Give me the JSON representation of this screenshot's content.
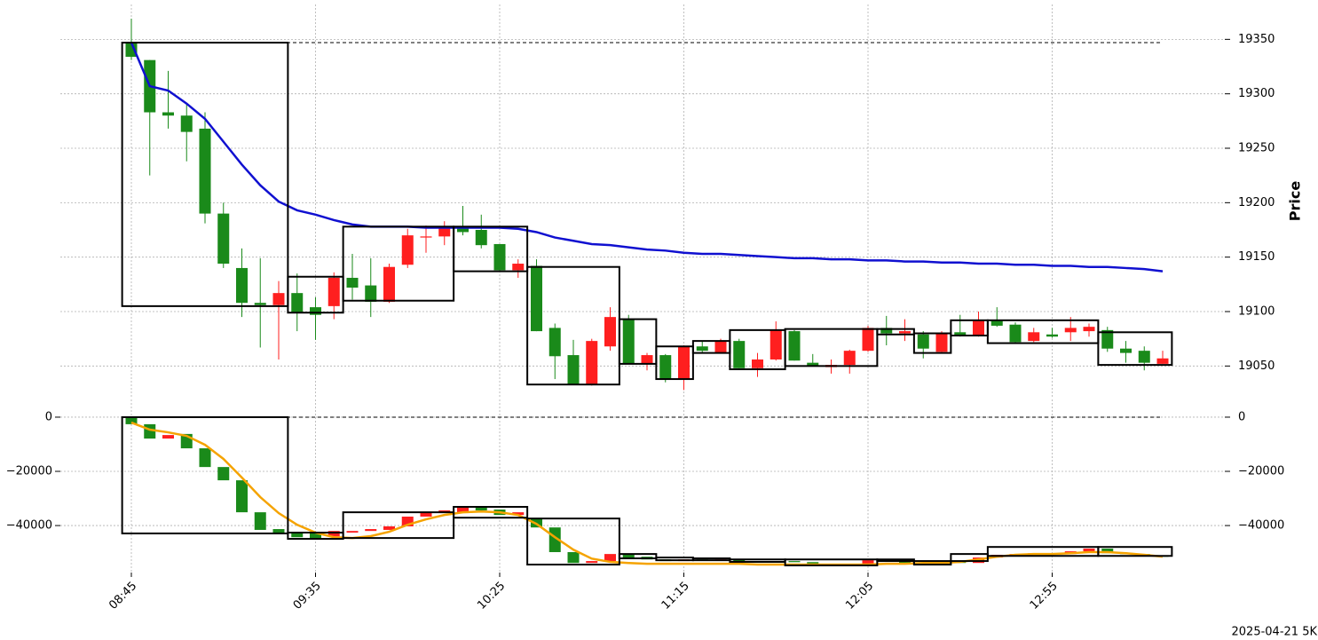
{
  "chart_data": {
    "type": "candlestick",
    "categories": [
      "08:45",
      null,
      null,
      null,
      null,
      null,
      null,
      null,
      null,
      null,
      "09:35",
      null,
      null,
      null,
      null,
      null,
      null,
      null,
      null,
      null,
      "10:25",
      null,
      null,
      null,
      null,
      null,
      null,
      null,
      null,
      null,
      "11:15",
      null,
      null,
      null,
      null,
      null,
      null,
      null,
      null,
      null,
      "12:05",
      null,
      null,
      null,
      null,
      null,
      null,
      null,
      null,
      null,
      "12:55",
      null,
      null,
      null,
      null,
      null,
      null
    ],
    "footer": "2025-04-21 5K",
    "grid": true,
    "up_color": "#ff1f1f",
    "down_color": "#1a8a1a",
    "panels": [
      {
        "ylabel": "Price",
        "ylim": [
          19025,
          19378
        ],
        "yticks": [
          19050,
          19100,
          19150,
          19200,
          19250,
          19300,
          19350
        ],
        "tick_sides": [
          "right"
        ],
        "open": [
          19347,
          19331,
          19283,
          19280,
          19268,
          19190,
          19140,
          19108,
          19106,
          19117,
          19104,
          19105,
          19131,
          19124,
          19109,
          19143,
          19168,
          19169,
          19177,
          19175,
          19162,
          19138,
          19142,
          19085,
          19060,
          19033,
          19068,
          19093,
          19052,
          19060,
          19038,
          19068,
          19062,
          19073,
          19048,
          19056,
          19082,
          19053,
          19049,
          19051,
          19064,
          19085,
          19080,
          19079,
          19063,
          19081,
          19078,
          19092,
          19088,
          19073,
          19079,
          19081,
          19082,
          19083,
          19066,
          19064,
          19052
        ],
        "high": [
          19369,
          19331,
          19321,
          19290,
          19283,
          19200,
          19158,
          19149,
          19128,
          19135,
          19113,
          19136,
          19153,
          19149,
          19144,
          19176,
          19179,
          19183,
          19197,
          19189,
          19162,
          19148,
          19148,
          19089,
          19074,
          19075,
          19104,
          19097,
          19062,
          19061,
          19069,
          19073,
          19075,
          19075,
          19062,
          19091,
          19083,
          19061,
          19056,
          19065,
          19087,
          19096,
          19093,
          19082,
          19082,
          19097,
          19100,
          19104,
          19090,
          19085,
          19085,
          19095,
          19089,
          19086,
          19073,
          19068,
          19064
        ],
        "low": [
          19331,
          19225,
          19268,
          19238,
          19181,
          19140,
          19095,
          19067,
          19056,
          19082,
          19074,
          19093,
          19111,
          19095,
          19108,
          19140,
          19154,
          19161,
          19170,
          19158,
          19137,
          19131,
          19082,
          19038,
          19033,
          19032,
          19064,
          19052,
          19046,
          19035,
          19028,
          19062,
          19062,
          19048,
          19040,
          19055,
          19055,
          19050,
          19043,
          19043,
          19063,
          19069,
          19073,
          19057,
          19062,
          19077,
          19077,
          19086,
          19071,
          19072,
          19076,
          19073,
          19077,
          19063,
          19053,
          19046,
          19052
        ],
        "close": [
          19334,
          19283,
          19280,
          19265,
          19190,
          19144,
          19108,
          19106,
          19117,
          19099,
          19097,
          19131,
          19122,
          19109,
          19141,
          19170,
          19169,
          19177,
          19173,
          19161,
          19138,
          19144,
          19082,
          19059,
          19033,
          19073,
          19095,
          19052,
          19060,
          19038,
          19068,
          19064,
          19073,
          19048,
          19056,
          19083,
          19055,
          19050,
          19051,
          19064,
          19085,
          19080,
          19082,
          19066,
          19080,
          19078,
          19092,
          19087,
          19072,
          19081,
          19077,
          19085,
          19086,
          19066,
          19062,
          19053,
          19057
        ],
        "line": {
          "color": "#1010d0",
          "values": [
            19347,
            19307,
            19303,
            19291,
            19277,
            19256,
            19235,
            19216,
            19201,
            19193,
            19189,
            19184,
            19180,
            19178,
            19178,
            19178,
            19177,
            19177,
            19177,
            19177,
            19177,
            19176,
            19173,
            19168,
            19165,
            19162,
            19161,
            19159,
            19157,
            19156,
            19154,
            19153,
            19153,
            19152,
            19151,
            19150,
            19149,
            19149,
            19148,
            19148,
            19147,
            19147,
            19146,
            19146,
            19145,
            19145,
            19144,
            19144,
            19143,
            19143,
            19142,
            19142,
            19141,
            19141,
            19140,
            19139,
            19137
          ]
        },
        "reference_line": 19347,
        "boxes": [
          {
            "x0": 0,
            "x1": 8,
            "top": 19347,
            "bottom": 19105
          },
          {
            "x0": 9,
            "x1": 11,
            "top": 19132,
            "bottom": 19099
          },
          {
            "x0": 12,
            "x1": 17,
            "top": 19178,
            "bottom": 19110
          },
          {
            "x0": 18,
            "x1": 21,
            "top": 19178,
            "bottom": 19137
          },
          {
            "x0": 22,
            "x1": 26,
            "top": 19141,
            "bottom": 19033
          },
          {
            "x0": 27,
            "x1": 28,
            "top": 19093,
            "bottom": 19052
          },
          {
            "x0": 29,
            "x1": 30,
            "top": 19068,
            "bottom": 19038
          },
          {
            "x0": 31,
            "x1": 32,
            "top": 19073,
            "bottom": 19062
          },
          {
            "x0": 33,
            "x1": 35,
            "top": 19083,
            "bottom": 19047
          },
          {
            "x0": 36,
            "x1": 40,
            "top": 19084,
            "bottom": 19050
          },
          {
            "x0": 41,
            "x1": 42,
            "top": 19084,
            "bottom": 19079
          },
          {
            "x0": 43,
            "x1": 44,
            "top": 19080,
            "bottom": 19062
          },
          {
            "x0": 45,
            "x1": 46,
            "top": 19092,
            "bottom": 19078
          },
          {
            "x0": 47,
            "x1": 52,
            "top": 19092,
            "bottom": 19071
          },
          {
            "x0": 53,
            "x1": 56,
            "top": 19081,
            "bottom": 19051
          }
        ]
      },
      {
        "ylim": [
          -55700,
          4900
        ],
        "yticks": [
          {
            "value": -40000,
            "label": "−40000"
          },
          {
            "value": -20000,
            "label": "−20000"
          },
          0
        ],
        "tick_sides": [
          "left",
          "right"
        ],
        "open": [
          0,
          -2600,
          -7900,
          -6200,
          -11500,
          -18400,
          -23300,
          -35100,
          -41300,
          -42300,
          -42600,
          -44000,
          -42600,
          -42000,
          -41600,
          -40300,
          -36700,
          -35400,
          -35400,
          -33400,
          -34100,
          -36100,
          -37400,
          -40700,
          -49800,
          -53800,
          -53100,
          -50800,
          -51500,
          -52500,
          -53100,
          -52500,
          -52800,
          -52500,
          -53400,
          -53500,
          -53100,
          -53500,
          -54400,
          -54100,
          -54700,
          -52800,
          -53400,
          -53800,
          -54400,
          -53400,
          -53800,
          -51800,
          -50800,
          -50500,
          -50200,
          -50500,
          -49500,
          -48500,
          -50200,
          -50500,
          -51200
        ],
        "close": [
          -2600,
          -7900,
          -6600,
          -11500,
          -18400,
          -23300,
          -35100,
          -41600,
          -43000,
          -44300,
          -44600,
          -42000,
          -42000,
          -41300,
          -40300,
          -36700,
          -35100,
          -34400,
          -33100,
          -34400,
          -36100,
          -35100,
          -40700,
          -49800,
          -53800,
          -53100,
          -50500,
          -51800,
          -52500,
          -53100,
          -52500,
          -52800,
          -52500,
          -53400,
          -53100,
          -53100,
          -53500,
          -54400,
          -54100,
          -54700,
          -52800,
          -53400,
          -53800,
          -54400,
          -53400,
          -53800,
          -51800,
          -50800,
          -50500,
          -50200,
          -50500,
          -49500,
          -48500,
          -50200,
          -50500,
          -51200,
          -51500
        ],
        "line": {
          "color": "#f5a300",
          "values": [
            -2000,
            -4600,
            -5600,
            -6900,
            -10200,
            -15400,
            -22300,
            -29500,
            -35400,
            -39700,
            -42600,
            -44300,
            -44600,
            -43900,
            -42300,
            -39700,
            -37700,
            -36100,
            -35100,
            -34800,
            -35100,
            -36100,
            -39400,
            -44300,
            -48900,
            -52200,
            -53400,
            -53800,
            -54100,
            -54100,
            -54100,
            -54100,
            -54100,
            -54100,
            -54400,
            -54400,
            -54400,
            -54400,
            -54400,
            -54400,
            -54400,
            -54100,
            -54100,
            -53800,
            -53800,
            -53400,
            -52500,
            -51500,
            -50800,
            -50500,
            -50500,
            -50200,
            -49800,
            -49800,
            -50200,
            -50800,
            -51500
          ]
        },
        "reference_line": 0,
        "boxes": [
          {
            "x0": 0,
            "x1": 8,
            "top": 0,
            "bottom": -42900
          },
          {
            "x0": 9,
            "x1": 11,
            "top": -42600,
            "bottom": -44900
          },
          {
            "x0": 12,
            "x1": 17,
            "top": -35100,
            "bottom": -44600
          },
          {
            "x0": 18,
            "x1": 21,
            "top": -33100,
            "bottom": -37100
          },
          {
            "x0": 22,
            "x1": 26,
            "top": -37400,
            "bottom": -54400
          },
          {
            "x0": 27,
            "x1": 28,
            "top": -50500,
            "bottom": -52100
          },
          {
            "x0": 29,
            "x1": 30,
            "top": -51800,
            "bottom": -52800
          },
          {
            "x0": 31,
            "x1": 32,
            "top": -52100,
            "bottom": -52800
          },
          {
            "x0": 33,
            "x1": 35,
            "top": -52500,
            "bottom": -53400
          },
          {
            "x0": 36,
            "x1": 40,
            "top": -52500,
            "bottom": -54700
          },
          {
            "x0": 41,
            "x1": 42,
            "top": -52500,
            "bottom": -53100
          },
          {
            "x0": 43,
            "x1": 44,
            "top": -53100,
            "bottom": -54400
          },
          {
            "x0": 45,
            "x1": 46,
            "top": -50500,
            "bottom": -53100
          },
          {
            "x0": 47,
            "x1": 52,
            "top": -47900,
            "bottom": -51200
          },
          {
            "x0": 53,
            "x1": 56,
            "top": -47900,
            "bottom": -51200
          }
        ]
      }
    ]
  }
}
